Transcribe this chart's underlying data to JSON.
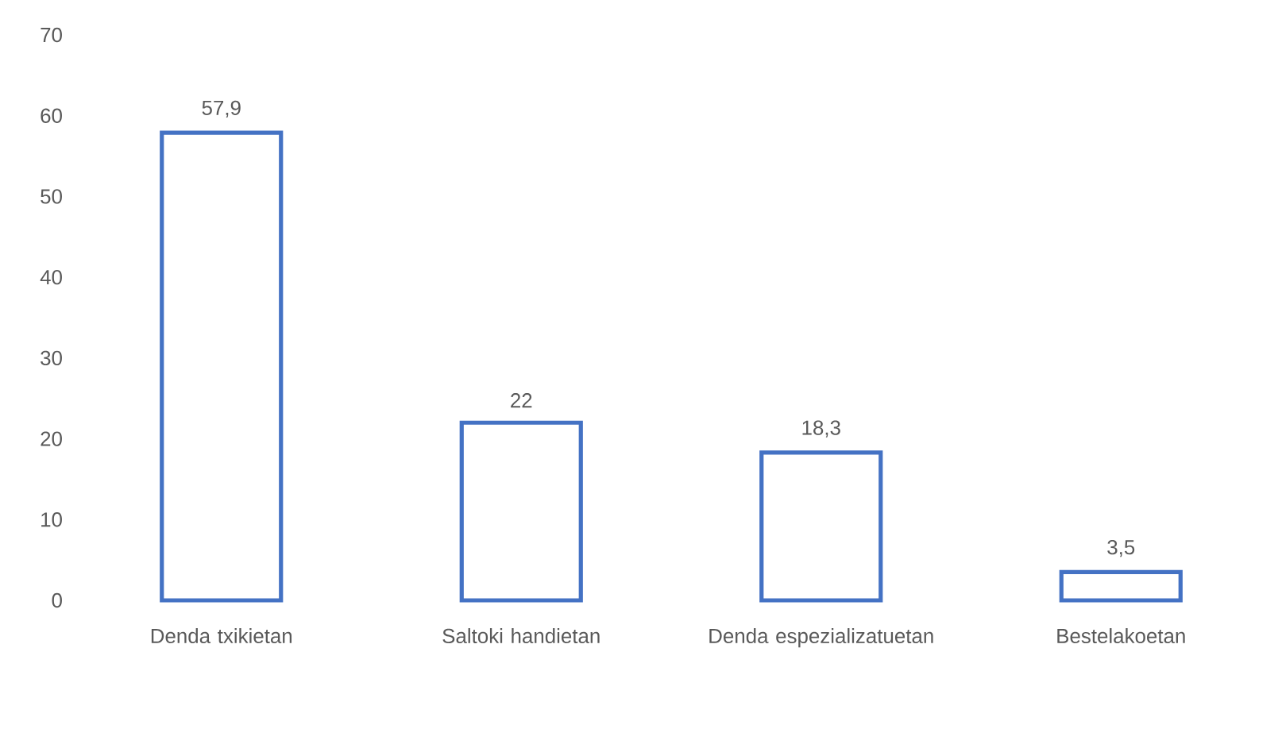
{
  "chart_data": {
    "type": "bar",
    "categories": [
      "Denda txikietan",
      "Saltoki handietan",
      "Denda espezializatuetan",
      "Bestelakoetan"
    ],
    "values": [
      57.9,
      22,
      18.3,
      3.5
    ],
    "value_labels": [
      "57,9",
      "22",
      "18,3",
      "3,5"
    ],
    "color": "#4472c4",
    "ylim": [
      0,
      70
    ],
    "yticks": [
      0,
      10,
      20,
      30,
      40,
      50,
      60,
      70
    ]
  }
}
